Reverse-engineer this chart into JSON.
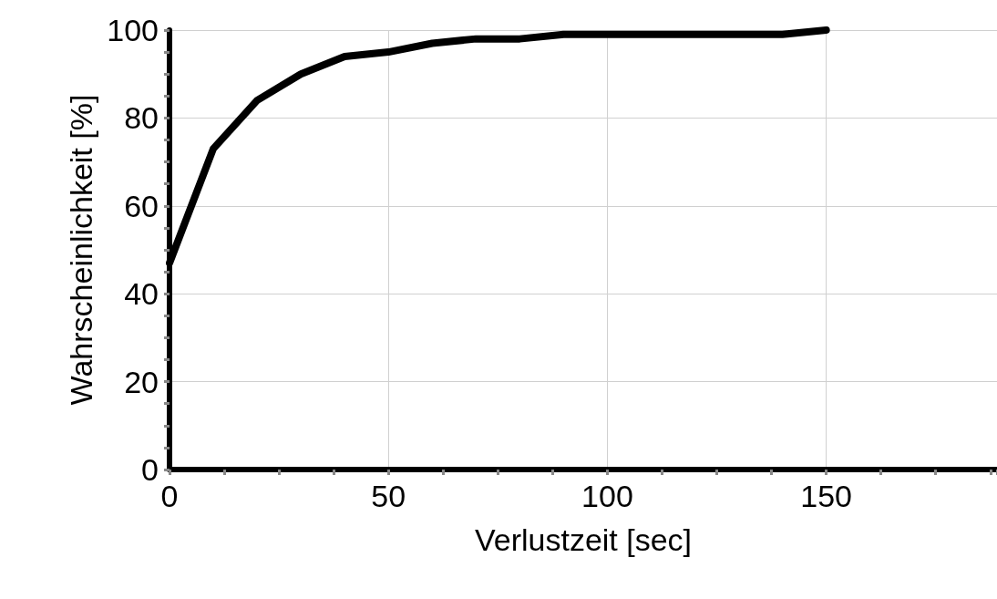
{
  "chart_data": {
    "type": "line",
    "xlabel": "Verlustzeit [sec]",
    "ylabel": "Wahrscheinlichkeit [%]",
    "series": [
      {
        "color": "#000000",
        "x": [
          0,
          10,
          20,
          30,
          40,
          50,
          60,
          70,
          80,
          90,
          100,
          110,
          120,
          130,
          140,
          150
        ],
        "values": [
          47,
          73,
          84,
          90,
          94,
          95,
          97,
          98,
          98,
          99,
          99,
          99,
          99,
          99,
          99,
          100
        ]
      }
    ],
    "xlim": [
      0,
      189
    ],
    "xticks": [
      0,
      {
        "value": 12.5,
        "label": null
      },
      {
        "value": 25,
        "label": null
      },
      {
        "value": 37.5,
        "label": null
      },
      50,
      {
        "value": 62.5,
        "label": null
      },
      {
        "value": 75,
        "label": null
      },
      {
        "value": 87.5,
        "label": null
      },
      100,
      {
        "value": 112.5,
        "label": null
      },
      {
        "value": 125,
        "label": null
      },
      {
        "value": 137.5,
        "label": null
      },
      150,
      {
        "value": 162.5,
        "label": null
      },
      {
        "value": 175,
        "label": null
      },
      {
        "value": 187.5,
        "label": null
      }
    ],
    "ylim": [
      0,
      100
    ],
    "yticks": [
      0,
      {
        "value": 5,
        "label": null
      },
      {
        "value": 10,
        "label": null
      },
      {
        "value": 15,
        "label": null
      },
      20,
      {
        "value": 25,
        "label": null
      },
      {
        "value": 30,
        "label": null
      },
      {
        "value": 35,
        "label": null
      },
      40,
      {
        "value": 45,
        "label": null
      },
      {
        "value": 50,
        "label": null
      },
      {
        "value": 55,
        "label": null
      },
      60,
      {
        "value": 65,
        "label": null
      },
      {
        "value": 70,
        "label": null
      },
      {
        "value": 75,
        "label": null
      },
      80,
      {
        "value": 85,
        "label": null
      },
      {
        "value": 90,
        "label": null
      },
      {
        "value": 95,
        "label": null
      },
      100
    ],
    "grid": true,
    "line_style": "solid"
  }
}
